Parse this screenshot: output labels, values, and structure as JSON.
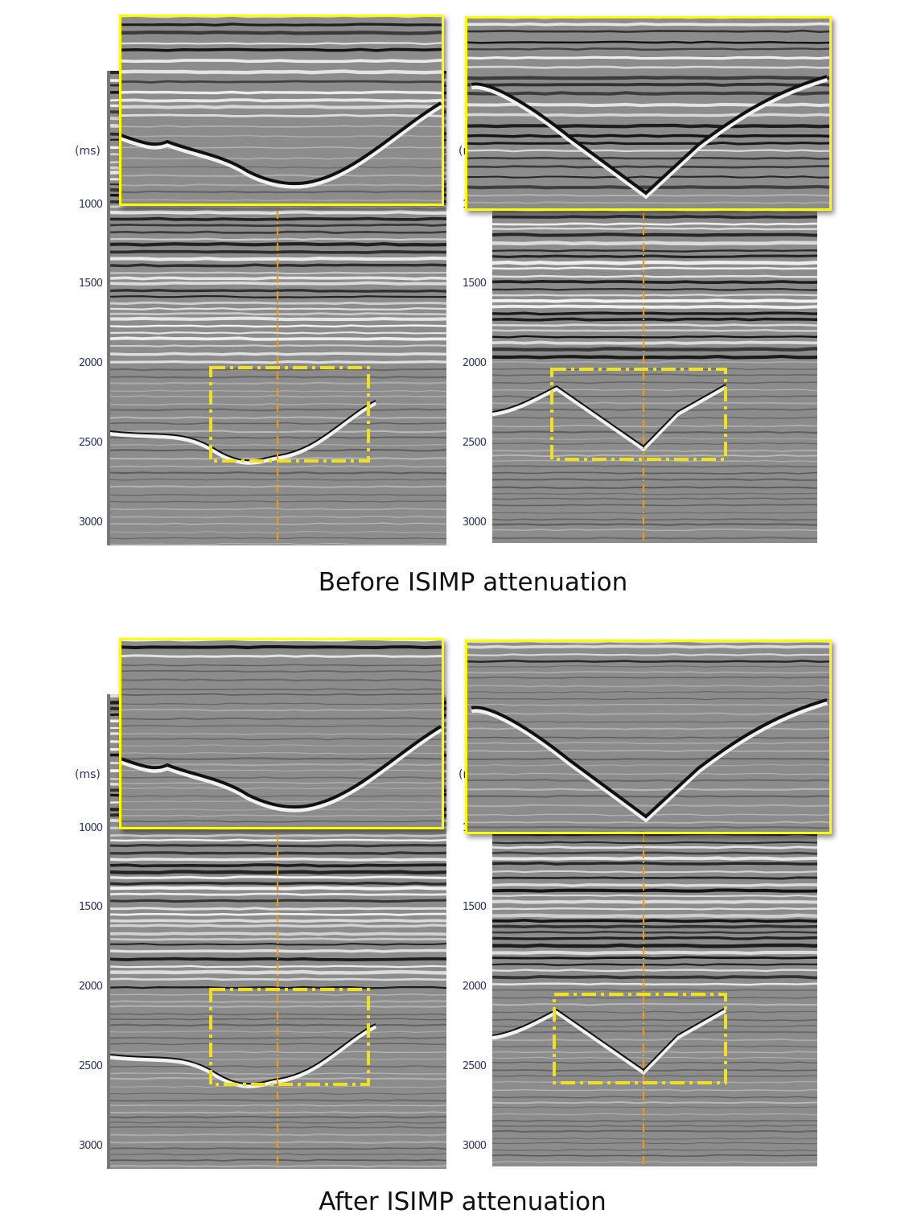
{
  "axis": {
    "unit": "(ms)",
    "ticks": [
      "1000",
      "1500",
      "2000",
      "2500",
      "3000"
    ]
  },
  "sections": [
    {
      "caption": "Before ISIMP attenuation"
    },
    {
      "caption": "After ISIMP attenuation"
    }
  ],
  "colors": {
    "inset_border": "#ffff00",
    "highlight_box": "#f0e020",
    "guide_line": "#f0a000",
    "axis_text": "#2a3560"
  }
}
